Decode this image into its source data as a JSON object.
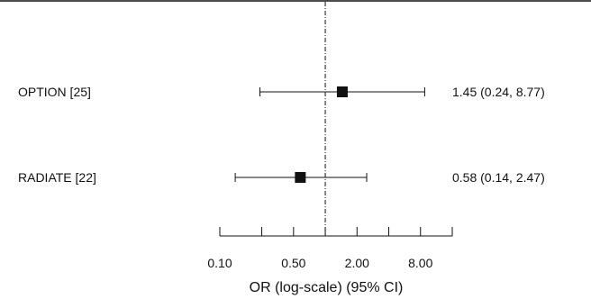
{
  "chart_data": {
    "type": "forest",
    "scale": "log",
    "xlim": [
      0.1,
      16.0
    ],
    "reference_line": 1.0,
    "xlabel": "OR (log-scale) (95% CI)",
    "ticks": [
      {
        "value": 0.1,
        "label": "0.10"
      },
      {
        "value": 0.25,
        "label": ""
      },
      {
        "value": 0.5,
        "label": "0.50"
      },
      {
        "value": 1.0,
        "label": ""
      },
      {
        "value": 2.0,
        "label": "2.00"
      },
      {
        "value": 4.0,
        "label": ""
      },
      {
        "value": 8.0,
        "label": "8.00"
      },
      {
        "value": 16.0,
        "label": ""
      }
    ],
    "studies": [
      {
        "label": "OPTION [25]",
        "or": 1.45,
        "ci_low": 0.24,
        "ci_high": 8.77,
        "text": "1.45 (0.24, 8.77)"
      },
      {
        "label": "RADIATE [22]",
        "or": 0.58,
        "ci_low": 0.14,
        "ci_high": 2.47,
        "text": "0.58 (0.14, 2.47)"
      }
    ]
  }
}
